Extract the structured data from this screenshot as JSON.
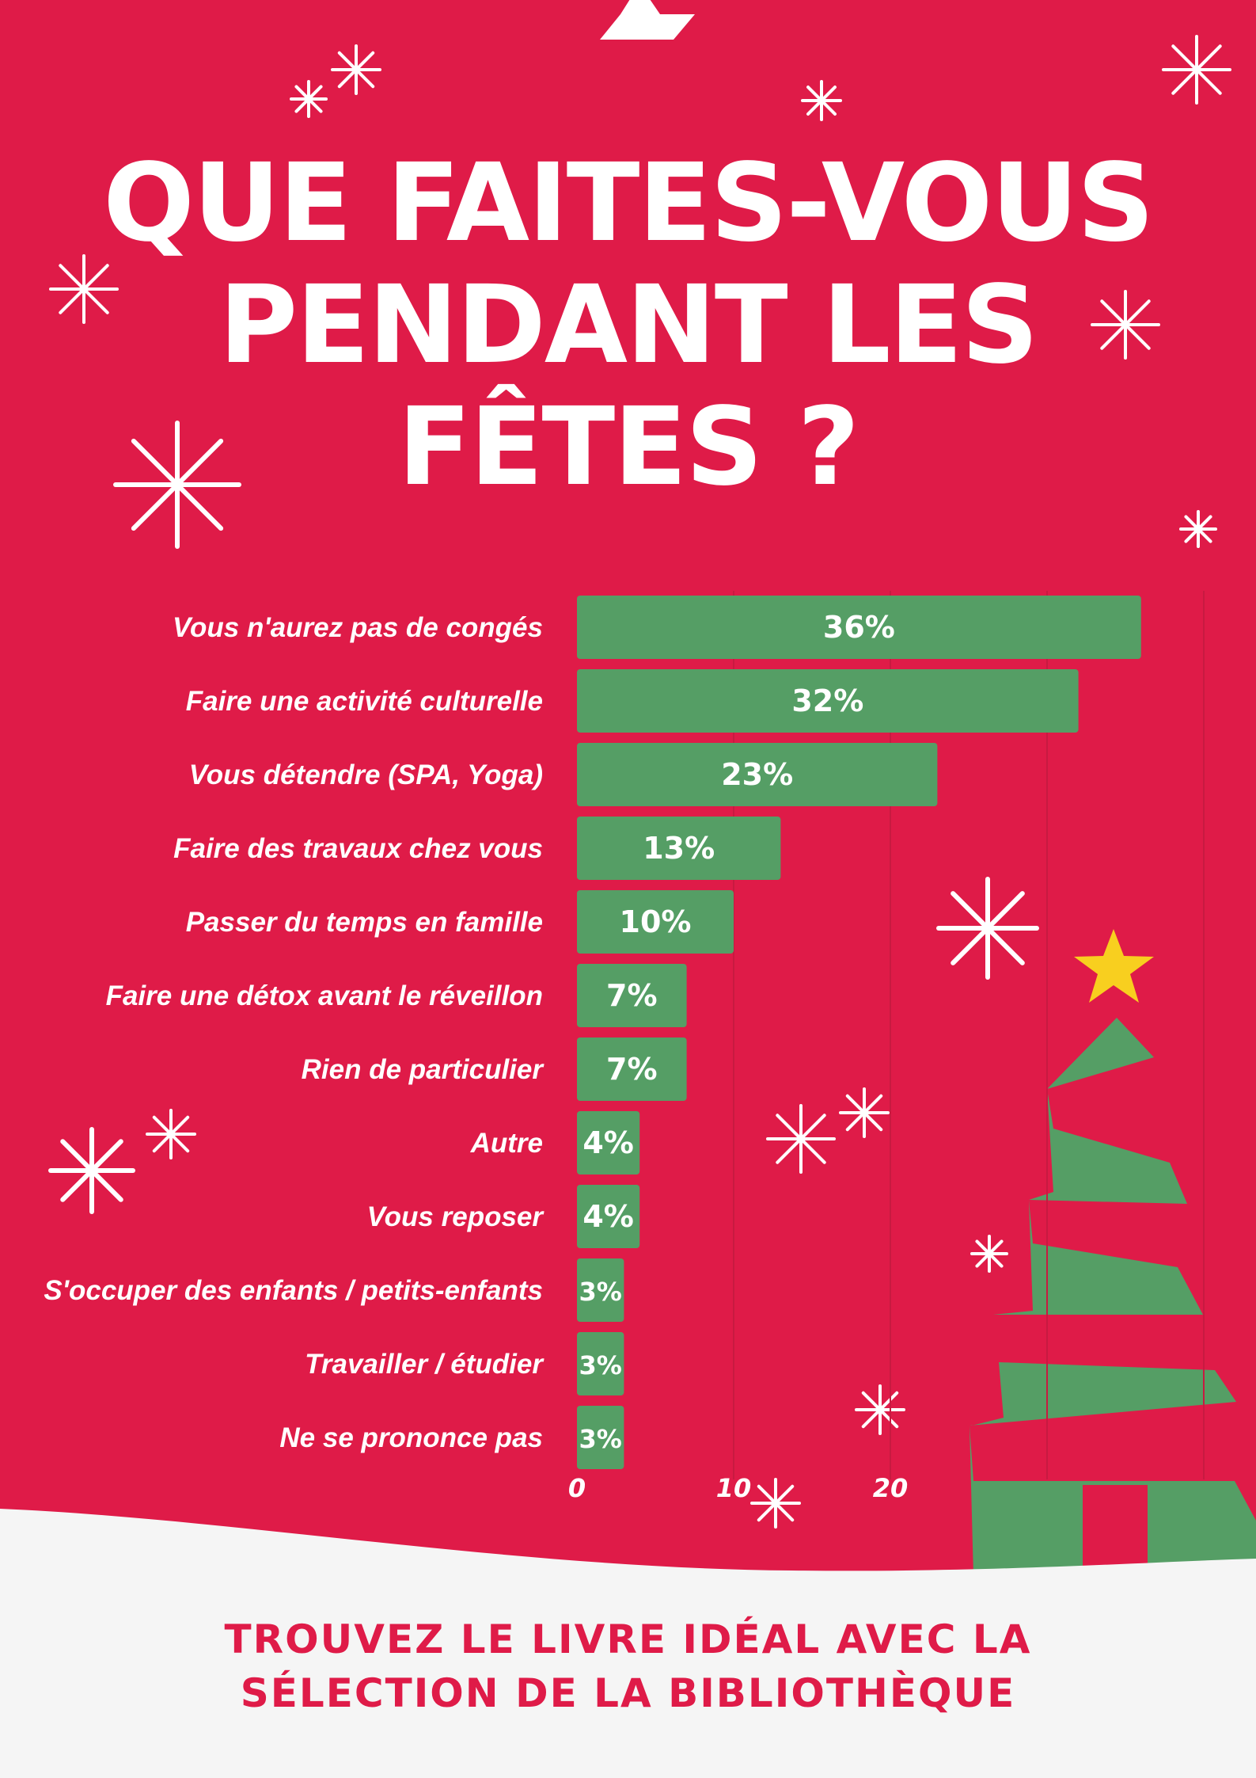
{
  "title": {
    "line1": "QUE FAITES-VOUS",
    "line2": "PENDANT LES",
    "line3": "FÊTES ?"
  },
  "footer": {
    "line1": "TROUVEZ LE LIVRE IDÉAL AVEC LA",
    "line2": "SÉLECTION DE LA BIBLIOTHÈQUE"
  },
  "colors": {
    "background": "#df1b48",
    "bar": "#559e65",
    "snow": "#f5f5f5",
    "star": "#f8cf1f",
    "tree": "#559e65",
    "text": "#ffffff"
  },
  "chart_data": {
    "type": "bar",
    "orientation": "horizontal",
    "categories": [
      "Vous n'aurez pas de congés",
      "Faire une activité culturelle",
      "Vous détendre (SPA, Yoga)",
      "Faire des travaux chez vous",
      "Passer du temps en famille",
      "Faire une détox avant le réveillon",
      "Rien de particulier",
      "Autre",
      "Vous reposer",
      "S'occuper des enfants / petits-enfants",
      "Travailler / étudier",
      "Ne se prononce pas"
    ],
    "values": [
      36,
      32,
      23,
      13,
      10,
      7,
      7,
      4,
      4,
      3,
      3,
      3
    ],
    "value_labels": [
      "36%",
      "32%",
      "23%",
      "13%",
      "10%",
      "7%",
      "7%",
      "4%",
      "4%",
      "3%",
      "3%",
      "3%"
    ],
    "xticks": [
      "0",
      "10",
      "20"
    ],
    "xlim": [
      0,
      40
    ],
    "grid": true,
    "legend": "none"
  }
}
